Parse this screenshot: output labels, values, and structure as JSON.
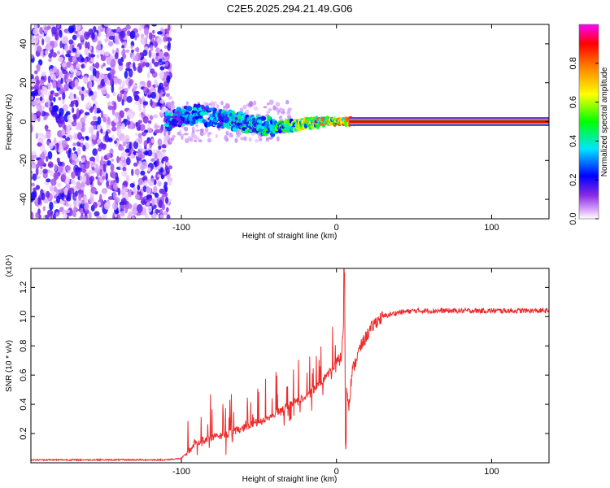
{
  "title": "C2E5.2025.294.21.49.G06",
  "chart_data": [
    {
      "type": "heatmap",
      "title": "C2E5.2025.294.21.49.G06",
      "xlabel": "Height of straight line (km)",
      "ylabel": "Frequency (Hz)",
      "xlim": [
        -197,
        137
      ],
      "ylim": [
        -50,
        50
      ],
      "x_ticks": [
        -100,
        0,
        100
      ],
      "x_tick_labels": [
        "-100",
        "0",
        "100"
      ],
      "y_ticks": [
        -40,
        -20,
        0,
        20,
        40
      ],
      "y_tick_labels": [
        "-40",
        "-20",
        "0",
        "20",
        "40"
      ],
      "colorbar": {
        "label": "Normalized spectral amplitude",
        "range": [
          0,
          1
        ],
        "ticks": [
          0.0,
          0.2,
          0.4,
          0.6,
          0.8
        ],
        "tick_labels": [
          "0.0",
          "0.2",
          "0.4",
          "0.6",
          "0.8"
        ],
        "colors": [
          "#ffffff",
          "#e0b0ff",
          "#8a2be2",
          "#0000ff",
          "#00e5ff",
          "#00ff00",
          "#ffff00",
          "#ff8000",
          "#ff0000",
          "#ff00ff"
        ]
      },
      "noise_region_x": [
        -197,
        -107
      ],
      "ridge": [
        {
          "x": -110,
          "f": 0,
          "amp": 0.38
        },
        {
          "x": -100,
          "f": 2.5,
          "amp": 0.35
        },
        {
          "x": -90,
          "f": 4,
          "amp": 0.4
        },
        {
          "x": -80,
          "f": 2,
          "amp": 0.35
        },
        {
          "x": -70,
          "f": 1.5,
          "amp": 0.4
        },
        {
          "x": -60,
          "f": -1,
          "amp": 0.45
        },
        {
          "x": -50,
          "f": -2,
          "amp": 0.45
        },
        {
          "x": -40,
          "f": -3,
          "amp": 0.5
        },
        {
          "x": -30,
          "f": -2,
          "amp": 0.55
        },
        {
          "x": -20,
          "f": -1,
          "amp": 0.7
        },
        {
          "x": -10,
          "f": 0,
          "amp": 0.75
        },
        {
          "x": 0,
          "f": 0,
          "amp": 0.8
        },
        {
          "x": 10,
          "f": 0,
          "amp": 0.9
        },
        {
          "x": 137,
          "f": 0,
          "amp": 0.9
        }
      ]
    },
    {
      "type": "line",
      "xlabel": "Height of straight line (km)",
      "ylabel": "SNR (10 * v/v)",
      "y_multiplier": "(x10⁴)",
      "xlim": [
        -197,
        137
      ],
      "ylim": [
        0,
        1.33
      ],
      "x_ticks": [
        -100,
        0,
        100
      ],
      "x_tick_labels": [
        "-100",
        "0",
        "100"
      ],
      "y_ticks": [
        0.2,
        0.4,
        0.6,
        0.8,
        1.0,
        1.2
      ],
      "y_tick_labels": [
        "0.2",
        "0.4",
        "0.6",
        "0.8",
        "1.0",
        "1.2"
      ],
      "series": [
        {
          "name": "SNR",
          "color": "#ee2a2a",
          "x": [
            -197,
            -150,
            -110,
            -100,
            -97,
            -90,
            -80,
            -70,
            -60,
            -50,
            -40,
            -30,
            -20,
            -10,
            -5,
            0,
            3,
            5,
            6,
            8,
            10,
            15,
            20,
            25,
            30,
            40,
            50,
            60,
            80,
            100,
            120,
            137
          ],
          "y": [
            0.02,
            0.02,
            0.02,
            0.03,
            0.06,
            0.14,
            0.17,
            0.2,
            0.24,
            0.28,
            0.33,
            0.4,
            0.45,
            0.55,
            0.62,
            0.68,
            0.72,
            1.0,
            0.55,
            0.4,
            0.62,
            0.78,
            0.88,
            0.96,
            1.0,
            1.03,
            1.04,
            1.04,
            1.04,
            1.04,
            1.04,
            1.04
          ]
        }
      ]
    }
  ]
}
